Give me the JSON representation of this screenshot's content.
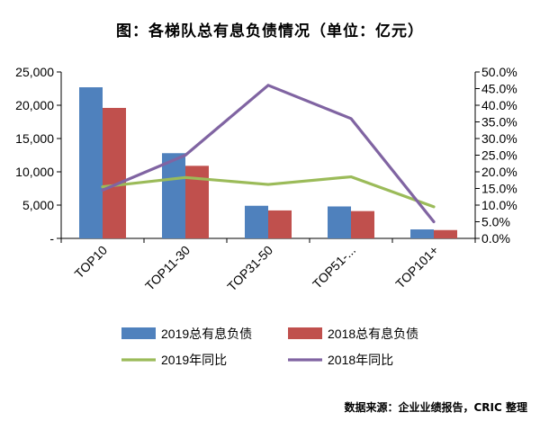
{
  "source": "数据来源：企业业绩报告，CRIC 整理",
  "chart_data": {
    "type": "bar",
    "title": "图：各梯队总有息负债情况（单位：亿元）",
    "categories": [
      "TOP10",
      "TOP11-30",
      "TOP31-50",
      "TOP51-...",
      "TOP101+"
    ],
    "series": [
      {
        "name": "2019总有息负债",
        "type": "bar",
        "axis": "left",
        "color": "#4F81BD",
        "values": [
          22700,
          12800,
          4900,
          4800,
          1350
        ]
      },
      {
        "name": "2018总有息负债",
        "type": "bar",
        "axis": "left",
        "color": "#C0504D",
        "values": [
          19600,
          10900,
          4200,
          4100,
          1250
        ]
      },
      {
        "name": "2019年同比",
        "type": "line",
        "axis": "right",
        "color": "#9BBB59",
        "values": [
          15.5,
          18.3,
          16.2,
          18.5,
          9.5
        ]
      },
      {
        "name": "2018年同比",
        "type": "line",
        "axis": "right",
        "color": "#8064A2",
        "values": [
          14.5,
          25.0,
          46.0,
          36.0,
          5.0
        ]
      }
    ],
    "y_left": {
      "ylim": [
        0,
        25000
      ],
      "ticks": [
        "-",
        "5,000",
        "10,000",
        "15,000",
        "20,000",
        "25,000"
      ]
    },
    "y_right": {
      "ylim": [
        0,
        50
      ],
      "ticks": [
        "0.0%",
        "5.0%",
        "10.0%",
        "15.0%",
        "20.0%",
        "25.0%",
        "30.0%",
        "35.0%",
        "40.0%",
        "45.0%",
        "50.0%"
      ]
    },
    "legend_position": "bottom",
    "grid": false
  }
}
